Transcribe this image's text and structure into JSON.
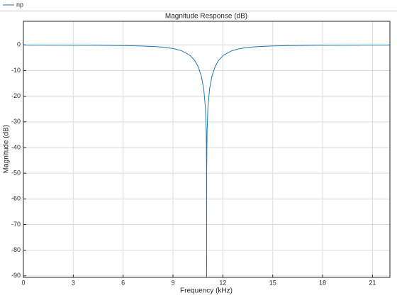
{
  "chart_data": {
    "type": "line",
    "title": "Magnitude Response (dB)",
    "x_label": "Frequency (kHz)",
    "y_label": "Magnitude (dB)",
    "x": [
      0,
      2,
      4,
      6,
      7,
      8,
      8.5,
      9,
      9.5,
      10,
      10.3,
      10.5,
      10.7,
      10.85,
      10.95,
      11.0,
      11.02,
      11.025,
      11.03,
      11.05,
      11.1,
      11.2,
      11.35,
      11.55,
      11.75,
      12.05,
      12.55,
      13.05,
      13.55,
      14.05,
      15.05,
      16.05,
      18.05,
      20.05,
      22.05
    ],
    "series": [
      {
        "name": "np",
        "color": "#1f77b4",
        "values": [
          -0.06,
          -0.08,
          -0.14,
          -0.26,
          -0.4,
          -0.68,
          -0.95,
          -1.4,
          -2.23,
          -3.96,
          -5.99,
          -8.24,
          -11.99,
          -17.16,
          -24.45,
          -33.98,
          -47.96,
          -90.6,
          -47.96,
          -33.98,
          -24.45,
          -17.16,
          -11.99,
          -8.24,
          -5.99,
          -3.96,
          -2.23,
          -1.4,
          -0.95,
          -0.68,
          -0.4,
          -0.26,
          -0.14,
          -0.08,
          -0.06
        ]
      }
    ],
    "xlim": [
      0,
      22.05
    ],
    "xticks": [
      0,
      3,
      6,
      9,
      12,
      15,
      18,
      21
    ],
    "ylim": [
      -90.6,
      9.2
    ],
    "yticks": [
      0,
      -10,
      -20,
      -30,
      -40,
      -50,
      -60,
      -70,
      -80,
      -90
    ],
    "grid": true,
    "legend": "top-left"
  }
}
